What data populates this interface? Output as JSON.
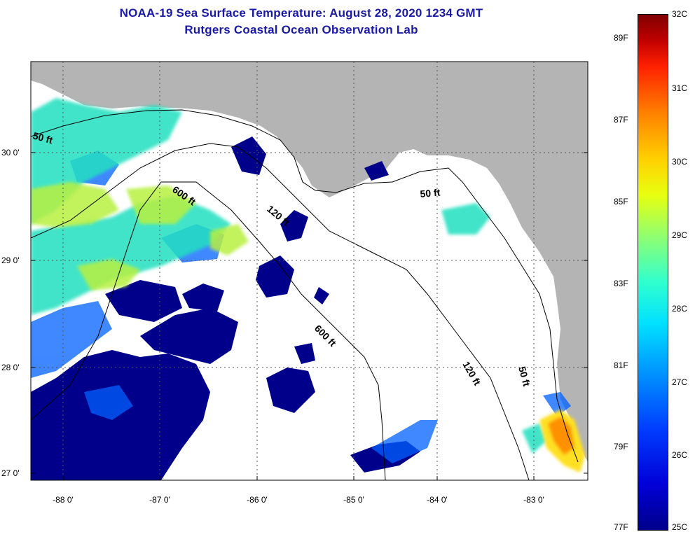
{
  "title": {
    "line1": "NOAA-19 Sea Surface Temperature:  August 28, 2020 1234 GMT",
    "line2": "Rutgers Coastal Ocean Observation Lab"
  },
  "axes": {
    "lat_labels": [
      "30 0'",
      "29 0'",
      "28 0'",
      "27 0'"
    ],
    "lon_labels": [
      "-88 0'",
      "-87 0'",
      "-86 0'",
      "-85 0'",
      "-84 0'",
      "-83 0'"
    ]
  },
  "contours": {
    "labels": [
      "50 ft",
      "600 ft",
      "120 ft",
      "50 ft",
      "600 ft",
      "120 ft",
      "50 ft"
    ]
  },
  "colorbar": {
    "fahrenheit": [
      "89F",
      "87F",
      "85F",
      "83F",
      "81F",
      "79F",
      "77F"
    ],
    "celsius": [
      "32C",
      "31C",
      "30C",
      "29C",
      "28C",
      "27C",
      "26C",
      "25C"
    ]
  },
  "colors": {
    "title": "#1a1aa6",
    "land": "#b4b4b4",
    "ocean_nodata": "#ffffff",
    "cold": "#00008b",
    "warm": "#ff8000"
  }
}
